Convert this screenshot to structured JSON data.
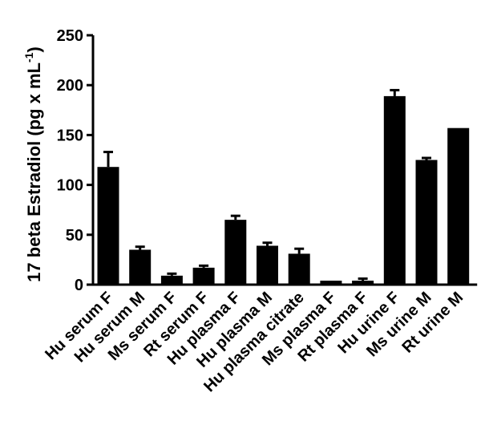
{
  "chart_data": {
    "type": "bar",
    "title": "",
    "xlabel": "",
    "ylabel": {
      "main": "17 beta Estradiol (pg x mL",
      "sup": "-1",
      "close": ")"
    },
    "ylim": [
      0,
      250
    ],
    "yticks": [
      0,
      50,
      100,
      150,
      200,
      250
    ],
    "grid": false,
    "legend": "none",
    "bar_color": "#000000",
    "categories": [
      "Hu serum F",
      "Hu serum M",
      "Ms serum F",
      "Rt serum F",
      "Hu plasma F",
      "Hu plasma M",
      "Hu plasma citrate",
      "Ms plasma F",
      "Rt plasma F",
      "Hu urine F",
      "Ms urine M",
      "Rt urine M"
    ],
    "values": [
      118,
      35,
      9,
      17,
      65,
      39,
      31,
      4,
      4,
      189,
      125,
      157
    ],
    "errors": [
      15,
      3,
      2,
      2,
      4,
      3,
      5,
      0,
      2,
      6,
      2,
      0
    ]
  }
}
